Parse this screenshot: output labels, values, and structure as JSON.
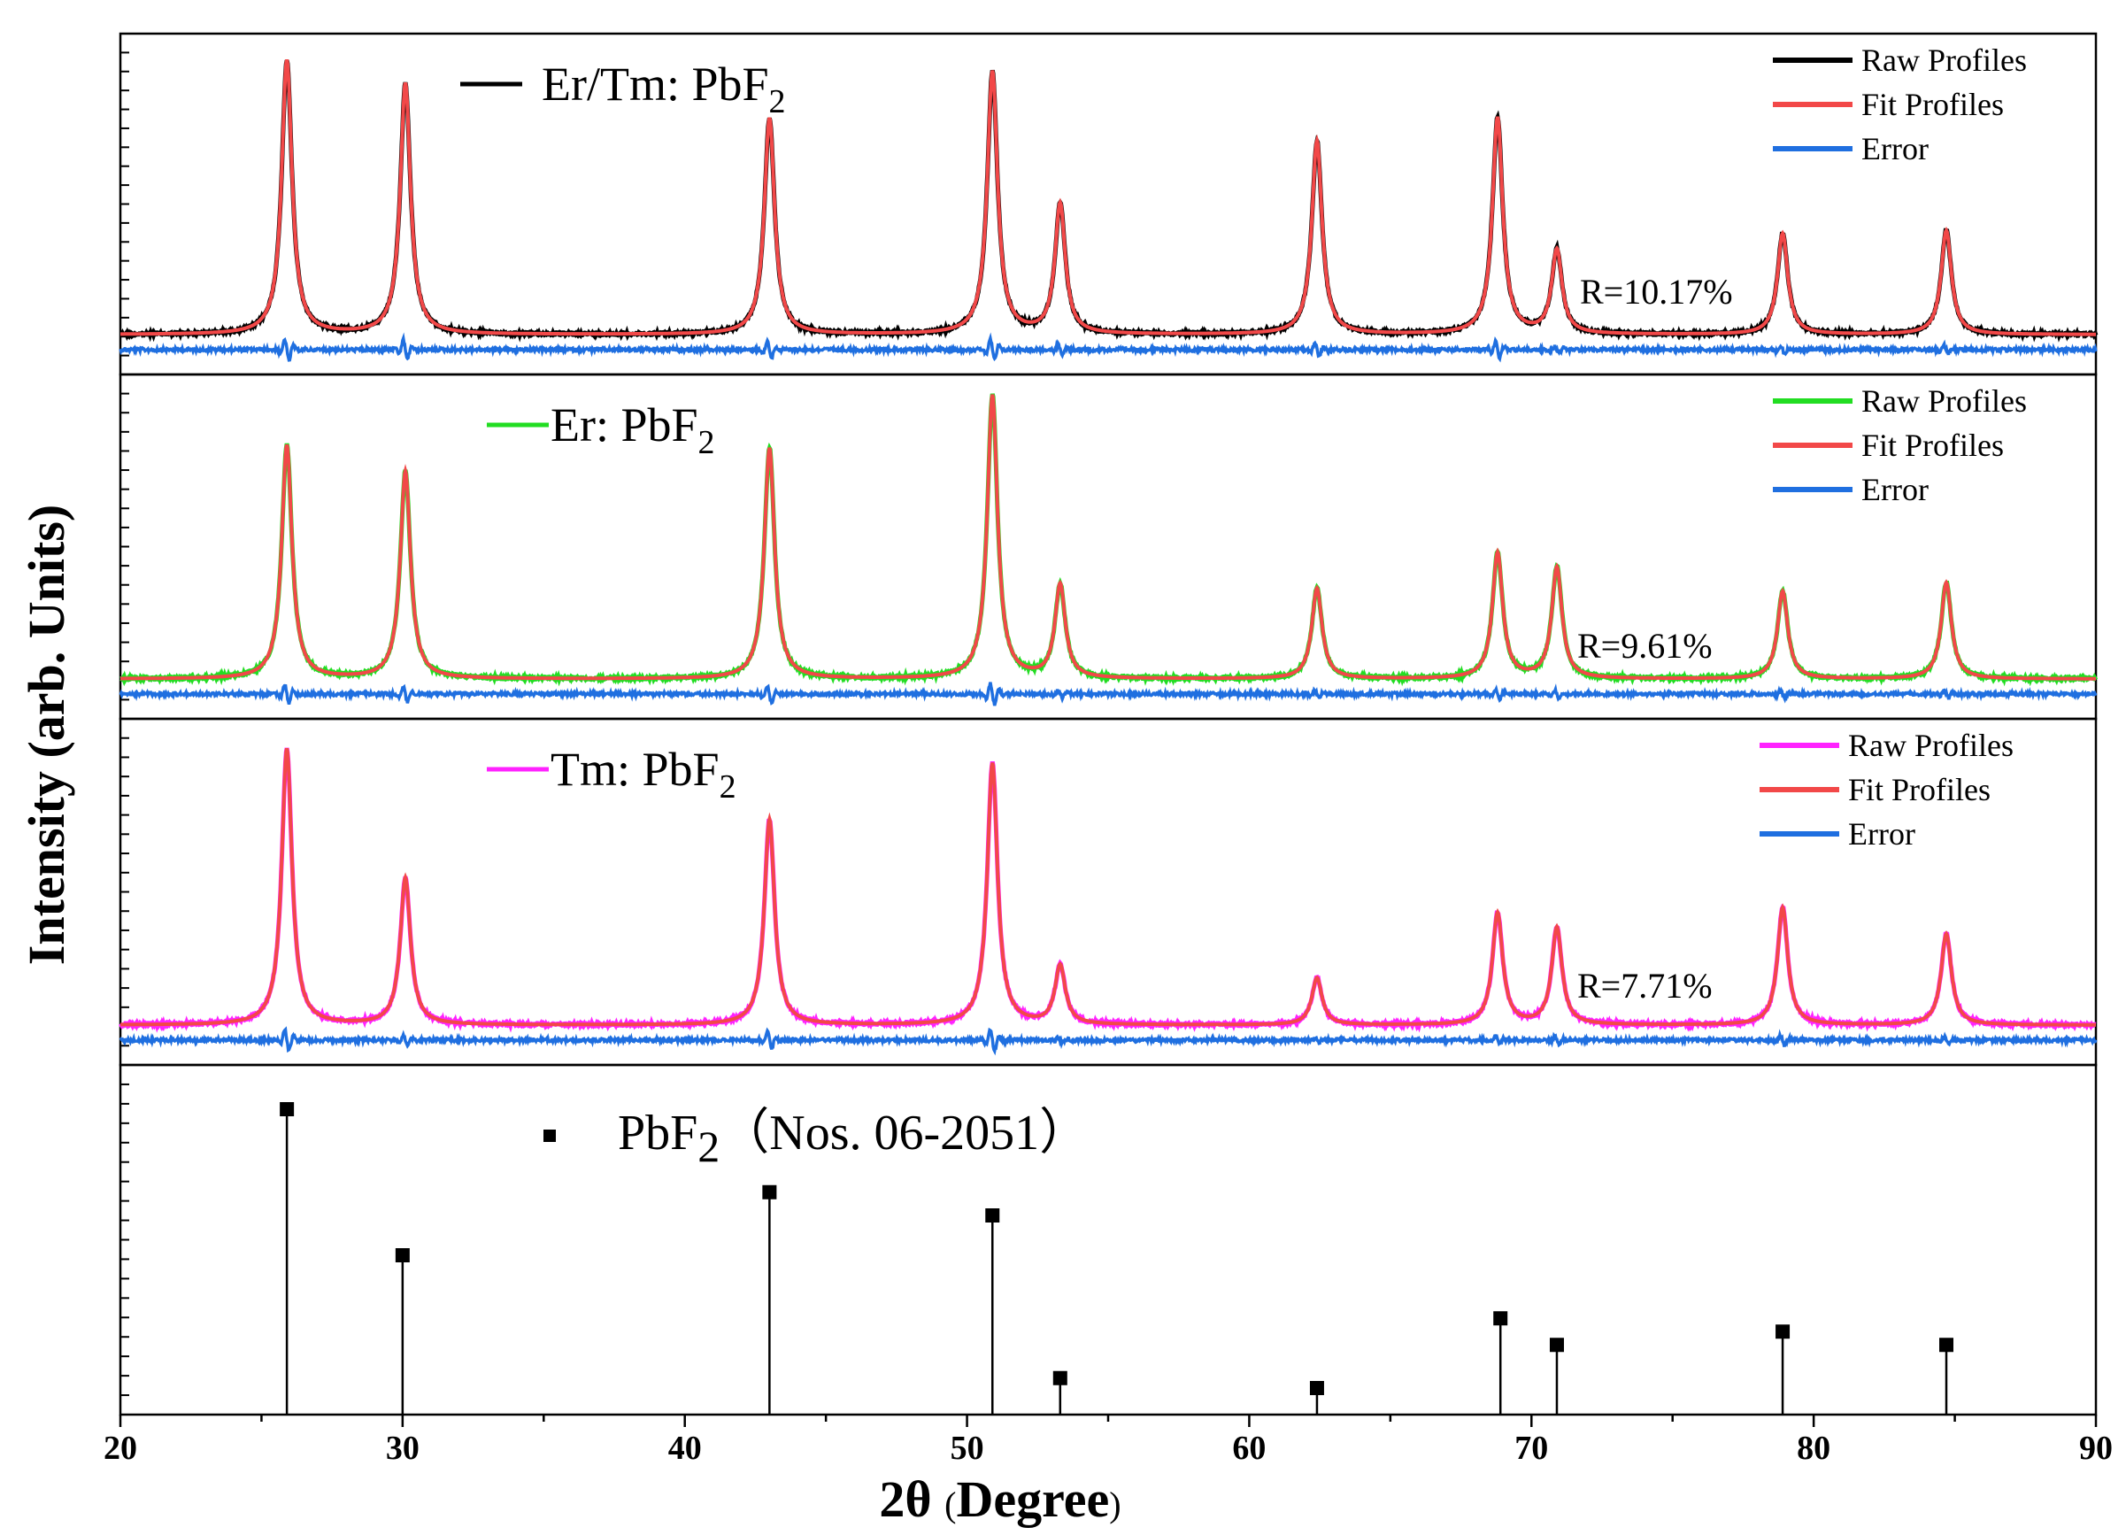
{
  "chart_data": {
    "type": "line",
    "xlabel": {
      "main": "2θ ",
      "paren_open": "(",
      "word": "Degree",
      "paren_close": ")"
    },
    "ylabel": "Intensity (arb. Units)",
    "xlim": [
      20,
      90
    ],
    "xticks": [
      20,
      30,
      40,
      50,
      60,
      70,
      80,
      90
    ],
    "panels": [
      {
        "title_main": "Er/Tm: PbF",
        "title_sub": "2",
        "title_line_color": "#000000",
        "raw_color": "#000000",
        "fit_color": "#f24848",
        "error_color": "#1f6fe0",
        "r_label": "R=10.17%",
        "legend": [
          "Raw Profiles",
          "Fit Profiles",
          "Error"
        ],
        "peaks": [
          [
            25.9,
            0.95
          ],
          [
            30.1,
            0.87
          ],
          [
            43.0,
            0.75
          ],
          [
            50.9,
            0.91
          ],
          [
            53.3,
            0.45
          ],
          [
            62.4,
            0.67
          ],
          [
            68.8,
            0.75
          ],
          [
            70.9,
            0.29
          ],
          [
            78.9,
            0.35
          ],
          [
            84.7,
            0.36
          ]
        ]
      },
      {
        "title_main": "Er: PbF",
        "title_sub": "2",
        "title_line_color": "#22dd22",
        "raw_color": "#22dd22",
        "fit_color": "#f24848",
        "error_color": "#1f6fe0",
        "r_label": "R=9.61%",
        "legend": [
          "Raw Profiles",
          "Fit Profiles",
          "Error"
        ],
        "peaks": [
          [
            25.9,
            0.8
          ],
          [
            30.1,
            0.71
          ],
          [
            43.0,
            0.79
          ],
          [
            50.9,
            0.97
          ],
          [
            53.3,
            0.32
          ],
          [
            62.4,
            0.31
          ],
          [
            68.8,
            0.43
          ],
          [
            70.9,
            0.38
          ],
          [
            78.9,
            0.3
          ],
          [
            84.7,
            0.33
          ]
        ]
      },
      {
        "title_main": "Tm: PbF",
        "title_sub": "2",
        "title_line_color": "#ff22ff",
        "raw_color": "#ff22ff",
        "fit_color": "#f24848",
        "error_color": "#1f6fe0",
        "r_label": "R=7.71%",
        "legend": [
          "Raw Profiles",
          "Fit Profiles",
          "Error"
        ],
        "peaks": [
          [
            25.9,
            0.94
          ],
          [
            30.1,
            0.5
          ],
          [
            43.0,
            0.7
          ],
          [
            50.9,
            0.89
          ],
          [
            53.3,
            0.2
          ],
          [
            62.4,
            0.16
          ],
          [
            68.8,
            0.38
          ],
          [
            70.9,
            0.33
          ],
          [
            78.9,
            0.4
          ],
          [
            84.7,
            0.31
          ]
        ]
      }
    ],
    "reference": {
      "label_main": "PbF",
      "label_sub": "2",
      "label_rest": "（Nos. 06-2051）",
      "marker_color": "#000000",
      "sticks": [
        [
          25.9,
          0.92
        ],
        [
          30.0,
          0.48
        ],
        [
          43.0,
          0.67
        ],
        [
          50.9,
          0.6
        ],
        [
          53.3,
          0.11
        ],
        [
          62.4,
          0.08
        ],
        [
          68.9,
          0.29
        ],
        [
          70.9,
          0.21
        ],
        [
          78.9,
          0.25
        ],
        [
          84.7,
          0.21
        ]
      ]
    }
  }
}
